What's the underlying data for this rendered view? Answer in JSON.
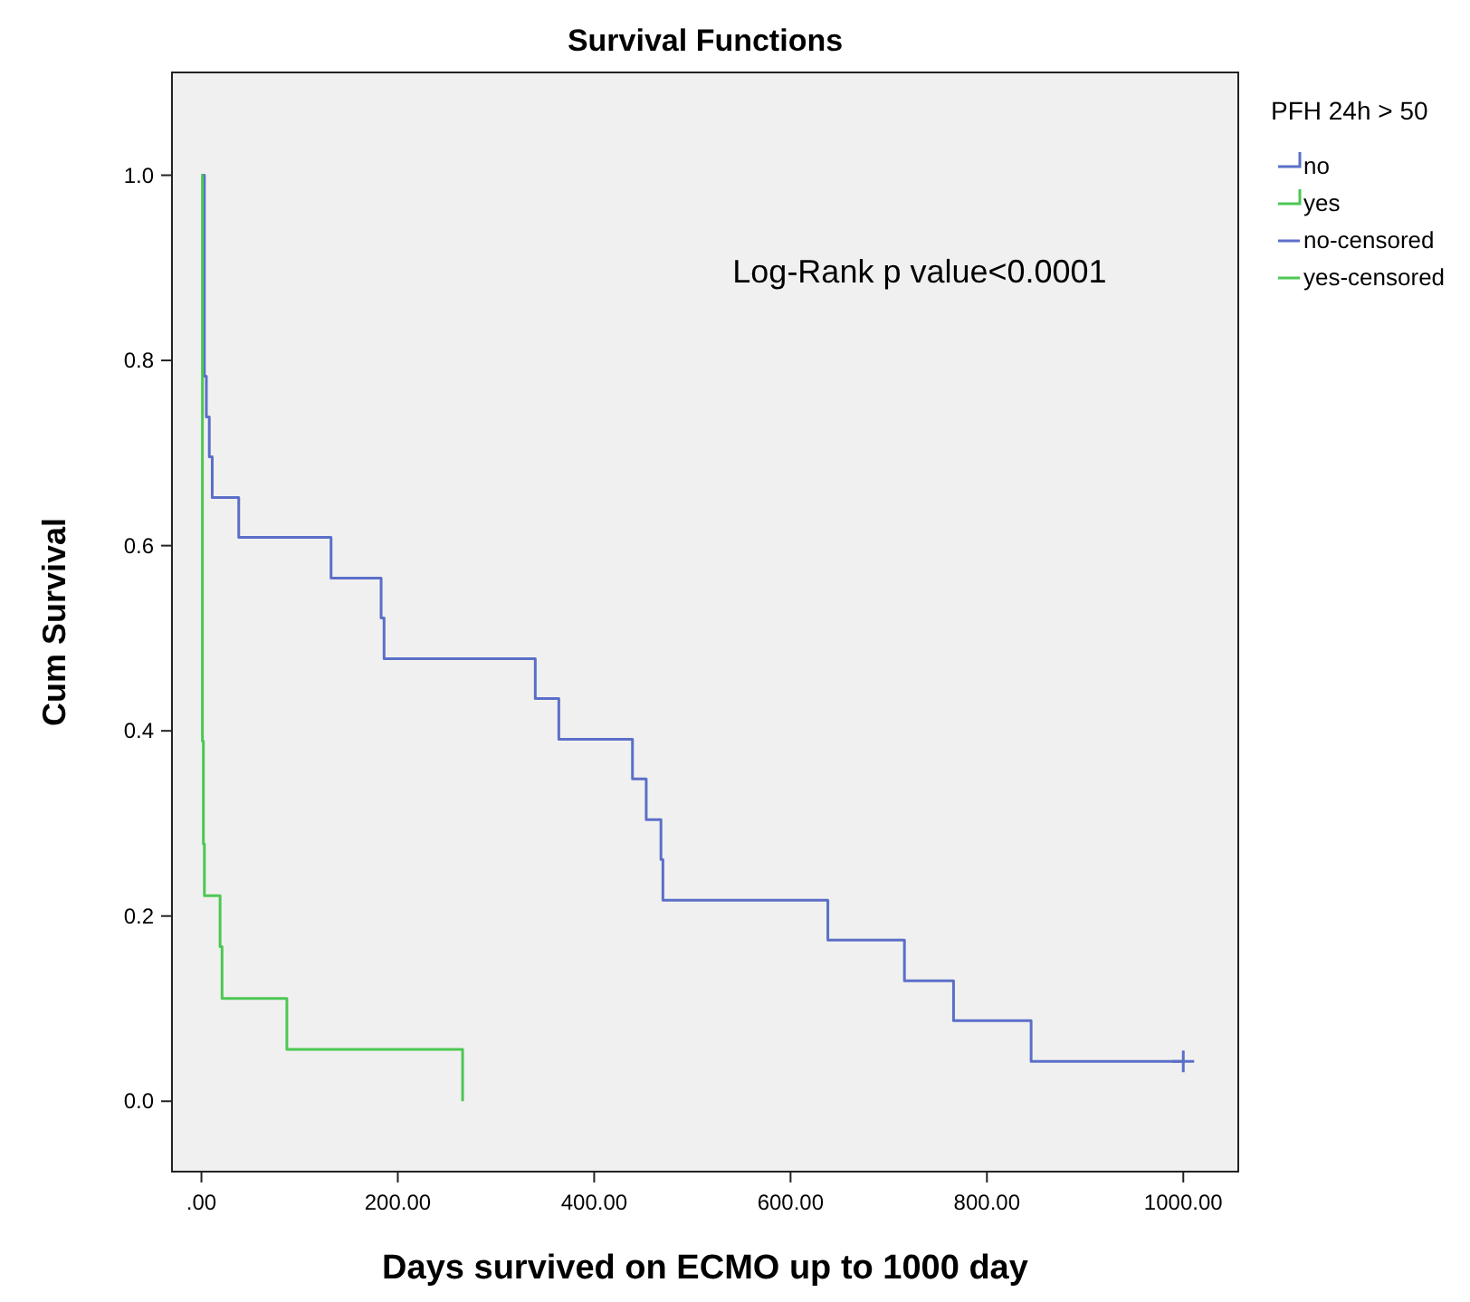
{
  "chart_data": {
    "type": "step",
    "title": "Survival Functions",
    "xlabel": "Days survived on ECMO up to 1000 day",
    "ylabel": "Cum Survival",
    "legend_title": "PFH 24h > 50",
    "legend": "top right",
    "annotations": [
      "Log-Rank p value<0.0001"
    ],
    "xlim": [
      -30,
      1056
    ],
    "ylim": [
      -0.076,
      1.111
    ],
    "xticks": [
      {
        "value": 0,
        "label": ".00"
      },
      {
        "value": 200,
        "label": "200.00"
      },
      {
        "value": 400,
        "label": "400.00"
      },
      {
        "value": 600,
        "label": "600.00"
      },
      {
        "value": 800,
        "label": "800.00"
      },
      {
        "value": 1000,
        "label": "1000.00"
      }
    ],
    "yticks": [
      {
        "value": 0,
        "label": "0.0"
      },
      {
        "value": 0.2,
        "label": "0.2"
      },
      {
        "value": 0.4,
        "label": "0.4"
      },
      {
        "value": 0.6,
        "label": "0.6"
      },
      {
        "value": 0.8,
        "label": "0.8"
      },
      {
        "value": 1,
        "label": "1.0"
      }
    ],
    "series": [
      {
        "name": "no",
        "color": "#5b6fc8",
        "x": [
          0,
          3,
          5,
          8,
          11,
          38,
          132,
          183,
          186,
          340,
          364,
          439,
          453,
          468,
          470,
          638,
          716,
          766,
          845,
          1000
        ],
        "values": [
          1.0,
          0.783,
          0.739,
          0.696,
          0.652,
          0.609,
          0.565,
          0.522,
          0.478,
          0.435,
          0.391,
          0.348,
          0.304,
          0.261,
          0.217,
          0.174,
          0.13,
          0.087,
          0.043,
          0.043
        ]
      },
      {
        "name": "yes",
        "color": "#4cc752",
        "x": [
          0,
          1,
          2,
          3,
          19,
          21,
          87,
          266
        ],
        "values": [
          1.0,
          0.389,
          0.278,
          0.222,
          0.167,
          0.111,
          0.056,
          0.0
        ]
      },
      {
        "name": "no-censored",
        "type": "scatter",
        "marker": "cross",
        "color": "#5b6fc8",
        "x": [
          1000
        ],
        "values": [
          0.043
        ]
      },
      {
        "name": "yes-censored",
        "type": "scatter",
        "marker": "cross",
        "color": "#4cc752"
      }
    ]
  }
}
